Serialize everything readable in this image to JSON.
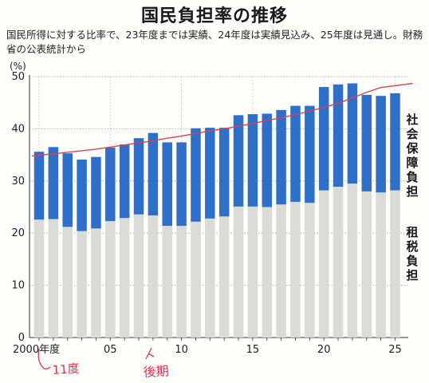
{
  "title": "国民負担率の推移",
  "subtitle": "国民所得に対する比率で、23年度までは実績、24年度は実績見込み、25年度は見通し。財務省の公表統計から",
  "unit_label": "(%)",
  "handwritten": {
    "note_left": "11度",
    "note_right": "後期"
  },
  "colors": {
    "tax_bar": "#dadad6",
    "social_bar": "#2f6fc8",
    "trend_line": "#d9444a",
    "ink_red": "#e0334f"
  },
  "chart_data": {
    "type": "bar",
    "stacked": true,
    "x": [
      2000,
      2001,
      2002,
      2003,
      2004,
      2005,
      2006,
      2007,
      2008,
      2009,
      2010,
      2011,
      2012,
      2013,
      2014,
      2015,
      2016,
      2017,
      2018,
      2019,
      2020,
      2021,
      2022,
      2023,
      2024,
      2025
    ],
    "x_tick_labels": [
      {
        "x": 2000,
        "label": "2000年度"
      },
      {
        "x": 2005,
        "label": "05"
      },
      {
        "x": 2010,
        "label": "10"
      },
      {
        "x": 2015,
        "label": "15"
      },
      {
        "x": 2020,
        "label": "20"
      },
      {
        "x": 2025,
        "label": "25"
      }
    ],
    "series": [
      {
        "name": "租税負担",
        "values": [
          22.6,
          22.7,
          21.2,
          20.4,
          20.9,
          22.3,
          22.9,
          23.6,
          23.4,
          21.4,
          21.4,
          22.2,
          22.8,
          23.2,
          25.1,
          25.1,
          25.0,
          25.5,
          26.0,
          25.8,
          28.2,
          28.9,
          29.5,
          28.0,
          27.8,
          28.2
        ]
      },
      {
        "name": "社会保障負担",
        "values": [
          13.0,
          13.8,
          14.1,
          13.7,
          13.7,
          14.1,
          14.1,
          14.6,
          15.8,
          16.0,
          16.0,
          17.9,
          17.4,
          17.0,
          17.5,
          17.7,
          17.9,
          18.1,
          18.4,
          18.6,
          19.8,
          19.6,
          19.2,
          18.5,
          18.5,
          18.6
        ]
      }
    ],
    "trend_line": [
      34.8,
      35.2,
      35.5,
      35.8,
      36.1,
      36.5,
      36.9,
      37.3,
      37.7,
      38.2,
      38.6,
      39.1,
      39.6,
      40.0,
      40.5,
      41.0,
      41.6,
      42.1,
      42.7,
      43.4,
      44.1,
      44.9,
      45.9,
      47.0,
      47.9,
      48.7
    ],
    "y_ticks": [
      0,
      10,
      20,
      30,
      40,
      50
    ],
    "ylim": [
      0,
      50
    ],
    "ylabel": "(%)",
    "grid": true
  }
}
